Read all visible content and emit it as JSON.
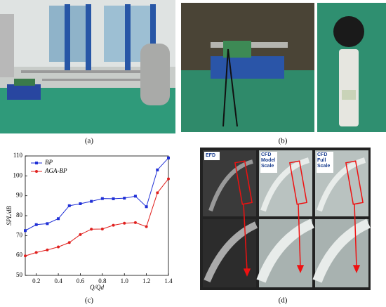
{
  "panels": {
    "a": "(a)",
    "b": "(b)",
    "c": "(c)",
    "d": "(d)"
  },
  "cfd_labels": [
    "EFD",
    "CFD Model Scale",
    "CFD Full Scale"
  ],
  "chart_data": {
    "type": "line",
    "x_label": "Q/Qd",
    "y_label": "SPL/dB",
    "x": [
      0.1,
      0.2,
      0.3,
      0.4,
      0.5,
      0.6,
      0.7,
      0.8,
      0.9,
      1.0,
      1.1,
      1.2,
      1.3,
      1.4
    ],
    "series": [
      {
        "name": "BP",
        "color": "#1f2fd6",
        "marker": "square",
        "values": [
          72.5,
          75.5,
          76,
          78.5,
          85,
          86,
          87.2,
          88.6,
          88.5,
          88.8,
          89.8,
          84.5,
          103,
          109
        ]
      },
      {
        "name": "AGA-BP",
        "color": "#e0201e",
        "marker": "circle",
        "values": [
          59.8,
          61.5,
          62.8,
          64.3,
          66.5,
          70.5,
          73.2,
          73.3,
          75.2,
          76.2,
          76.5,
          74.5,
          91.5,
          98.5
        ]
      }
    ],
    "xlim": [
      0.1,
      1.4
    ],
    "xticks": [
      0.2,
      0.4,
      0.6,
      0.8,
      {
        "value": 1,
        "label": "1.0"
      },
      1.2,
      1.4
    ],
    "ylim": [
      50,
      110
    ],
    "yticks": [
      50,
      60,
      70,
      80,
      90,
      100,
      110
    ],
    "legend": "upper-left"
  }
}
